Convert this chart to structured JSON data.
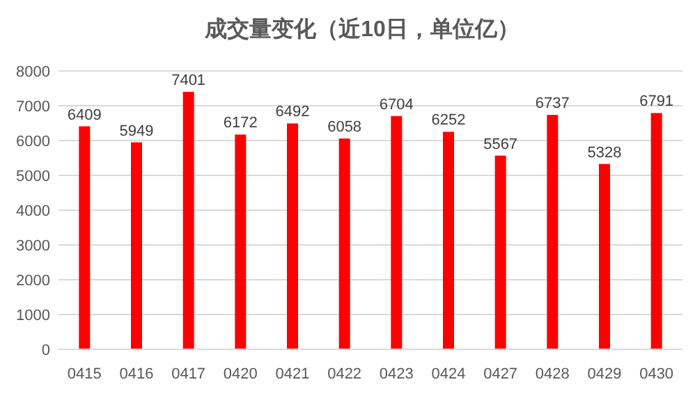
{
  "chart_data": {
    "type": "bar",
    "title": "成交量变化（近10日，单位亿）",
    "categories": [
      "0415",
      "0416",
      "0417",
      "0420",
      "0421",
      "0422",
      "0423",
      "0424",
      "0427",
      "0428",
      "0429",
      "0430"
    ],
    "values": [
      6409,
      5949,
      7401,
      6172,
      6492,
      6058,
      6704,
      6252,
      5567,
      6737,
      5328,
      6791
    ],
    "color": "#ff0000",
    "ylim": [
      0,
      8000
    ],
    "yticks": [
      0,
      1000,
      2000,
      3000,
      4000,
      5000,
      6000,
      7000,
      8000
    ],
    "grid": "y",
    "data_labels": true
  }
}
